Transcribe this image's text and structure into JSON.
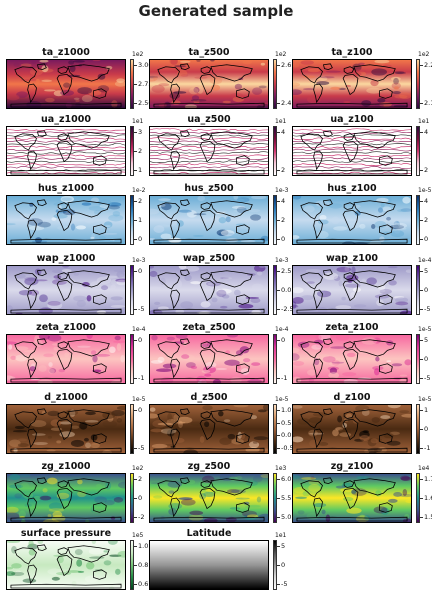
{
  "title": "Generated sample",
  "panels": [
    {
      "title": "ta_z1000",
      "exponent": "1e2",
      "ticks": [
        "3.00",
        "2.75",
        "2.50"
      ],
      "cmap": [
        "#2b0a3d",
        "#7a1a5e",
        "#c93b4a",
        "#f1764a",
        "#fbd8a0"
      ],
      "style": "heat"
    },
    {
      "title": "ta_z500",
      "exponent": "1e2",
      "ticks": [
        "2.6",
        "2.4"
      ],
      "cmap": [
        "#2b0a3d",
        "#7a1a5e",
        "#c93b4a",
        "#f1764a",
        "#fbd8a0"
      ],
      "style": "heat"
    },
    {
      "title": "ta_z100",
      "exponent": "1e2",
      "ticks": [
        "2.2",
        "2.1"
      ],
      "cmap": [
        "#2b0a3d",
        "#7a1a5e",
        "#c93b4a",
        "#f1764a",
        "#fbd8a0"
      ],
      "style": "heat"
    },
    {
      "title": "ua_z1000",
      "exponent": "1e1",
      "ticks": [
        "3",
        "2",
        "1"
      ],
      "cmap": [
        "#ffffff",
        "#f6c8d8",
        "#d0356f",
        "#7a0a3a",
        "#2b0a3d"
      ],
      "style": "stream"
    },
    {
      "title": "ua_z500",
      "exponent": "1e1",
      "ticks": [
        "4",
        "2"
      ],
      "cmap": [
        "#ffffff",
        "#f6c8d8",
        "#d0356f",
        "#7a0a3a",
        "#2b0a3d"
      ],
      "style": "stream"
    },
    {
      "title": "ua_z100",
      "exponent": "1e1",
      "ticks": [
        "4",
        "2"
      ],
      "cmap": [
        "#ffffff",
        "#f6c8d8",
        "#d0356f",
        "#7a0a3a",
        "#2b0a3d"
      ],
      "style": "stream"
    },
    {
      "title": "hus_z1000",
      "exponent": "1e-2",
      "ticks": [
        "2",
        "1",
        "0"
      ],
      "cmap": [
        "#f7fbff",
        "#c6dbef",
        "#6baed6",
        "#2171b5",
        "#08306b"
      ],
      "style": "blue"
    },
    {
      "title": "hus_z500",
      "exponent": "1e-3",
      "ticks": [
        "4",
        "2",
        "0"
      ],
      "cmap": [
        "#f7fbff",
        "#c6dbef",
        "#6baed6",
        "#2171b5",
        "#08306b"
      ],
      "style": "blue"
    },
    {
      "title": "hus_z100",
      "exponent": "1e-5",
      "ticks": [
        "4",
        "2",
        "0"
      ],
      "cmap": [
        "#f7fbff",
        "#c6dbef",
        "#6baed6",
        "#2171b5",
        "#08306b"
      ],
      "style": "blue"
    },
    {
      "title": "wap_z1000",
      "exponent": "1e-3",
      "ticks": [
        "0",
        "-5"
      ],
      "cmap": [
        "#ffffff",
        "#dadaeb",
        "#9e9ac8",
        "#6a51a3",
        "#3f007d"
      ],
      "style": "purple"
    },
    {
      "title": "wap_z500",
      "exponent": "1e-3",
      "ticks": [
        "2.5",
        "0.0",
        "-2.5"
      ],
      "cmap": [
        "#ffffff",
        "#dadaeb",
        "#9e9ac8",
        "#6a51a3",
        "#3f007d"
      ],
      "style": "purple"
    },
    {
      "title": "wap_z100",
      "exponent": "1e-4",
      "ticks": [
        "5",
        "0",
        "-5"
      ],
      "cmap": [
        "#ffffff",
        "#dadaeb",
        "#9e9ac8",
        "#6a51a3",
        "#3f007d"
      ],
      "style": "purple"
    },
    {
      "title": "zeta_z1000",
      "exponent": "1e-4",
      "ticks": [
        "0",
        "-1"
      ],
      "cmap": [
        "#fff7f3",
        "#fcc5c0",
        "#f768a1",
        "#dd3497",
        "#7a0177"
      ],
      "style": "pink"
    },
    {
      "title": "zeta_z500",
      "exponent": "1e-4",
      "ticks": [
        "0",
        "-1"
      ],
      "cmap": [
        "#fff7f3",
        "#fcc5c0",
        "#f768a1",
        "#dd3497",
        "#7a0177"
      ],
      "style": "pink"
    },
    {
      "title": "zeta_z100",
      "exponent": "1e-5",
      "ticks": [
        "5",
        "0",
        "-5"
      ],
      "cmap": [
        "#fff7f3",
        "#fcc5c0",
        "#f768a1",
        "#dd3497",
        "#7a0177"
      ],
      "style": "pink"
    },
    {
      "title": "d_z1000",
      "exponent": "1e-5",
      "ticks": [
        "0",
        "-5"
      ],
      "cmap": [
        "#000000",
        "#4a2a12",
        "#a0623a",
        "#d79a6a",
        "#ffe0c0"
      ],
      "style": "copper"
    },
    {
      "title": "d_z500",
      "exponent": "1e-5",
      "ticks": [
        "1.0",
        "0.5",
        "0.0",
        "-0.5"
      ],
      "cmap": [
        "#000000",
        "#4a2a12",
        "#a0623a",
        "#d79a6a",
        "#ffe0c0"
      ],
      "style": "copper"
    },
    {
      "title": "d_z100",
      "exponent": "1e-5",
      "ticks": [
        "1",
        "0",
        "-1"
      ],
      "cmap": [
        "#000000",
        "#4a2a12",
        "#a0623a",
        "#d79a6a",
        "#ffe0c0"
      ],
      "style": "copper"
    },
    {
      "title": "zg_z1000",
      "exponent": "1e2",
      "ticks": [
        "2",
        "0",
        "-2"
      ],
      "cmap": [
        "#440154",
        "#3b528b",
        "#21918c",
        "#5ec962",
        "#fde725"
      ],
      "style": "viridis"
    },
    {
      "title": "zg_z500",
      "exponent": "1e3",
      "ticks": [
        "6.0",
        "5.5",
        "5.0"
      ],
      "cmap": [
        "#440154",
        "#3b528b",
        "#21918c",
        "#5ec962",
        "#fde725"
      ],
      "style": "viridis"
    },
    {
      "title": "zg_z100",
      "exponent": "1e4",
      "ticks": [
        "1.7",
        "1.6",
        "1.5"
      ],
      "cmap": [
        "#440154",
        "#3b528b",
        "#21918c",
        "#5ec962",
        "#fde725"
      ],
      "style": "viridis"
    },
    {
      "title": "surface pressure",
      "exponent": "1e5",
      "ticks": [
        "1.0",
        "0.8",
        "0.6"
      ],
      "cmap": [
        "#00441b",
        "#238b45",
        "#74c476",
        "#c7e9c0",
        "#f7fcf5"
      ],
      "style": "green"
    },
    {
      "title": "Latitude",
      "exponent": "1e1",
      "ticks": [
        "5",
        "0",
        "-5"
      ],
      "cmap": [
        "#ffffff",
        "#d9d9d9",
        "#969696",
        "#525252",
        "#000000"
      ],
      "style": "gray"
    }
  ]
}
